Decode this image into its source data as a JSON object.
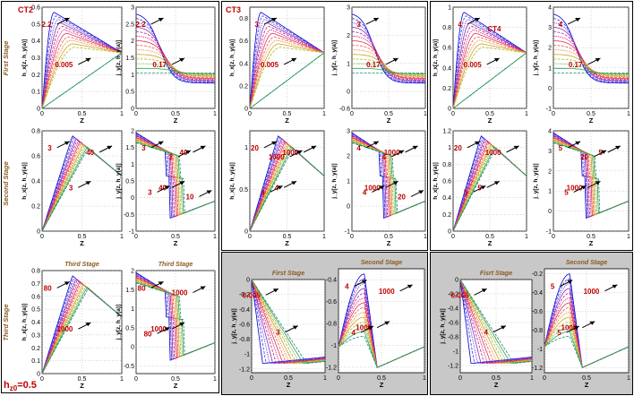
{
  "figure": {
    "case_titles": [
      "CT2",
      "CT3",
      "CT4"
    ],
    "row_labels": {
      "first": "First Stage",
      "second": "Second Stage",
      "third": "Third Stage"
    },
    "h_z0_label": "h",
    "h_z0_sub": "z0",
    "h_z0_value": "=0.5",
    "colors": {
      "title": "#c00000",
      "stage": "#8b5a1e",
      "panel_gray": "#c8c8c8",
      "annot": "#c00000"
    }
  },
  "chart_data": [
    {
      "id": "ct2-first-h",
      "type": "line",
      "ylabel": "h_x[z, h_y(a)]",
      "xlabel": "Z",
      "xlim": [
        0,
        1
      ],
      "ylim": [
        0,
        0.6
      ],
      "xticks": [
        "0",
        "0.5",
        "1"
      ],
      "yticks": [
        "0",
        "0.1",
        "0.2",
        "0.3",
        "0.4",
        "0.5",
        "0.6"
      ],
      "family": "peak",
      "family_params": {
        "peak_at": [
          0.18,
          0.5
        ],
        "peak_val": [
          0.55,
          0.5
        ],
        "end": 0.5
      },
      "annotations": [
        "2.2",
        "0.005"
      ]
    },
    {
      "id": "ct2-first-j",
      "type": "line",
      "ylabel": "j_y[z, h_y(a)]",
      "xlabel": "Z",
      "xlim": [
        0,
        1
      ],
      "ylim": [
        0,
        3
      ],
      "xticks": [
        "0",
        "0.5",
        "1"
      ],
      "yticks": [
        "0",
        "0.5",
        "1",
        "1.5",
        "2",
        "2.5",
        "3"
      ],
      "family": "decay",
      "annotations": [
        "2.2",
        "0.17"
      ]
    },
    {
      "id": "ct3-first-h",
      "type": "line",
      "ylabel": "h_x[z, h_y(a)]",
      "xlabel": "Z",
      "xlim": [
        0,
        1
      ],
      "ylim": [
        0,
        0.9
      ],
      "xticks": [
        "0",
        "0.5",
        "1"
      ],
      "yticks": [
        "0",
        "0.2",
        "0.4",
        "0.6",
        "0.8"
      ],
      "family": "peak",
      "annotations": [
        "3",
        "0.005"
      ]
    },
    {
      "id": "ct3-first-j",
      "type": "line",
      "ylabel": "j_y[z, h_y(a)]",
      "xlabel": "Z",
      "xlim": [
        0,
        1
      ],
      "ylim": [
        -0.6,
        3
      ],
      "xticks": [
        "0",
        "0.5",
        "1"
      ],
      "yticks": [
        "-0.6",
        "0",
        "1",
        "2",
        "3"
      ],
      "family": "decay",
      "annotations": [
        "3",
        "0.17"
      ]
    },
    {
      "id": "ct4-first-h",
      "type": "line",
      "ylabel": "h_x[z, h_y(a)]",
      "xlabel": "Z",
      "xlim": [
        0,
        1
      ],
      "ylim": [
        0,
        1
      ],
      "xticks": [
        "0",
        "0.5",
        "1"
      ],
      "yticks": [
        "0",
        "0.2",
        "0.4",
        "0.6",
        "0.8",
        "1"
      ],
      "family": "peak",
      "annotations": [
        "4",
        "0.005",
        "CT4"
      ]
    },
    {
      "id": "ct4-first-j",
      "type": "line",
      "ylabel": "j_y[z, h_y(a)]",
      "xlabel": "Z",
      "xlim": [
        0,
        1
      ],
      "ylim": [
        -1,
        4
      ],
      "xticks": [
        "0",
        "0.5",
        "1"
      ],
      "yticks": [
        "-1",
        "0",
        "1",
        "2",
        "3",
        "4"
      ],
      "family": "decay",
      "annotations": [
        "4",
        "0.17"
      ]
    },
    {
      "id": "ct2-second-h",
      "type": "line",
      "ylabel": "h_x[z, h_y(a)]",
      "xlabel": "Z",
      "xlim": [
        0,
        1
      ],
      "ylim": [
        0,
        0.8
      ],
      "xticks": [
        "0",
        "0.5",
        "1"
      ],
      "yticks": [
        "0",
        "0.2",
        "0.4",
        "0.6",
        "0.8"
      ],
      "family": "tent",
      "annotations": [
        "3",
        "3",
        "40"
      ]
    },
    {
      "id": "ct2-second-j",
      "type": "line",
      "ylabel": "j_y[z, h_y(a)]",
      "xlabel": "Z",
      "xlim": [
        0,
        1
      ],
      "ylim": [
        -1,
        2
      ],
      "xticks": [
        "0",
        "0.5",
        "1"
      ],
      "yticks": [
        "-1",
        "-0.5",
        "0",
        "0.5",
        "1",
        "1.5",
        "2"
      ],
      "family": "drop",
      "annotations": [
        "3",
        "40",
        "40",
        "3",
        "3",
        "10"
      ]
    },
    {
      "id": "ct3-second-h",
      "type": "line",
      "ylabel": "h_x[z, h_y(a)]",
      "xlabel": "Z",
      "xlim": [
        0,
        1
      ],
      "ylim": [
        0,
        1.2
      ],
      "xticks": [
        "0",
        "0.5",
        "1"
      ],
      "yticks": [
        "0",
        "0.5",
        "1"
      ],
      "family": "tent",
      "annotations": [
        "20",
        "4",
        "1000",
        "4",
        "1000"
      ]
    },
    {
      "id": "ct3-second-j",
      "type": "line",
      "ylabel": "j_y[z, h_y(a)]",
      "xlabel": "Z",
      "xlim": [
        0,
        1
      ],
      "ylim": [
        -1,
        3
      ],
      "xticks": [
        "0",
        "0.5",
        "1"
      ],
      "yticks": [
        "-1",
        "0",
        "1",
        "2",
        "3"
      ],
      "family": "drop",
      "annotations": [
        "4",
        "1000",
        "1000",
        "4",
        "4",
        "20"
      ]
    },
    {
      "id": "ct4-second-h",
      "type": "line",
      "ylabel": "h_x[z, h_y(a)]",
      "xlabel": "Z",
      "xlim": [
        0,
        1
      ],
      "ylim": [
        0,
        1.2
      ],
      "xticks": [
        "0",
        "0.5",
        "1"
      ],
      "yticks": [
        "0",
        "0.2",
        "0.4",
        "0.6",
        "0.8",
        "1",
        "1.2"
      ],
      "family": "tent",
      "annotations": [
        "20",
        "5",
        "1000",
        "5"
      ]
    },
    {
      "id": "ct4-second-j",
      "type": "line",
      "ylabel": "j_y[z, h_y(a)]",
      "xlabel": "Z",
      "xlim": [
        0,
        1
      ],
      "ylim": [
        -1,
        4
      ],
      "xticks": [
        "0",
        "0.5",
        "1"
      ],
      "yticks": [
        "-1",
        "0",
        "1",
        "2",
        "3",
        "4"
      ],
      "family": "drop",
      "annotations": [
        "5",
        "1000",
        "5",
        "5",
        "20"
      ]
    },
    {
      "id": "ct2-third-h",
      "type": "line",
      "title": "Third Stage",
      "ylabel": "h_x[z, h_y(a)]",
      "xlabel": "Z",
      "xlim": [
        0,
        1
      ],
      "ylim": [
        0,
        0.8
      ],
      "xticks": [
        "0",
        "0.5",
        "1"
      ],
      "yticks": [
        "0",
        "0.1",
        "0.2",
        "0.3",
        "0.4",
        "0.5",
        "0.6",
        "0.7",
        "0.8"
      ],
      "family": "tent",
      "annotations": [
        "80",
        "1000"
      ]
    },
    {
      "id": "ct2-third-j",
      "type": "line",
      "title": "Third Stage",
      "ylabel": "j_y[z, h_y(a)]",
      "xlabel": "Z",
      "xlim": [
        0,
        1
      ],
      "ylim": [
        -0.7,
        2
      ],
      "xticks": [
        "0",
        "0.5",
        "1"
      ],
      "yticks": [
        "-0.5",
        "0",
        "0.5",
        "1",
        "1.5",
        "2"
      ],
      "family": "drop",
      "annotations": [
        "80",
        "1000",
        "1000",
        "80"
      ]
    },
    {
      "id": "ct3-low-first",
      "type": "line",
      "title": "First Stage",
      "ylabel": "j_y[z, h_y(a)]",
      "xlabel": "Z",
      "xlim": [
        0,
        1
      ],
      "ylim": [
        -1.25,
        0
      ],
      "xticks": [
        "0",
        "0.5",
        "1"
      ],
      "yticks": [
        "-1.2",
        "-1",
        "-0.8",
        "-0.6",
        "-0.4",
        "-0.2",
        "0"
      ],
      "family": "down",
      "annotations": [
        "0.005",
        "3"
      ]
    },
    {
      "id": "ct3-low-second",
      "type": "line",
      "title": "Second Stage",
      "ylabel": "",
      "xlabel": "Z",
      "xlim": [
        0,
        1
      ],
      "ylim": [
        -1.25,
        -0.3
      ],
      "xticks": [
        "0",
        "0.5",
        "1"
      ],
      "yticks": [
        "-1.2",
        "-1",
        "-0.8",
        "-0.6",
        "-0.4"
      ],
      "family": "bump",
      "annotations": [
        "4",
        "1000",
        "1000",
        "4"
      ]
    },
    {
      "id": "ct4-low-first",
      "type": "line",
      "title": "Fisrt Stage",
      "ylabel": "j_y[z, h_y(a)]",
      "xlabel": "Z",
      "xlim": [
        0,
        1
      ],
      "ylim": [
        -1.3,
        0
      ],
      "xticks": [
        "0",
        "0.5",
        "1"
      ],
      "yticks": [
        "-1.2",
        "-1",
        "-0.8",
        "-0.6",
        "-0.4",
        "-0.2",
        "0"
      ],
      "family": "down",
      "annotations": [
        "0.005",
        "4"
      ]
    },
    {
      "id": "ct4-low-second",
      "type": "line",
      "title": "Second Stage",
      "ylabel": "",
      "xlabel": "Z",
      "xlim": [
        0,
        1
      ],
      "ylim": [
        -1.25,
        -0.15
      ],
      "xticks": [
        "0",
        "0.5",
        "1"
      ],
      "yticks": [
        "-1.2",
        "-1",
        "-0.8",
        "-0.6",
        "-0.4",
        "-0.2"
      ],
      "family": "bump",
      "annotations": [
        "5",
        "1000",
        "1000",
        "5"
      ]
    }
  ]
}
